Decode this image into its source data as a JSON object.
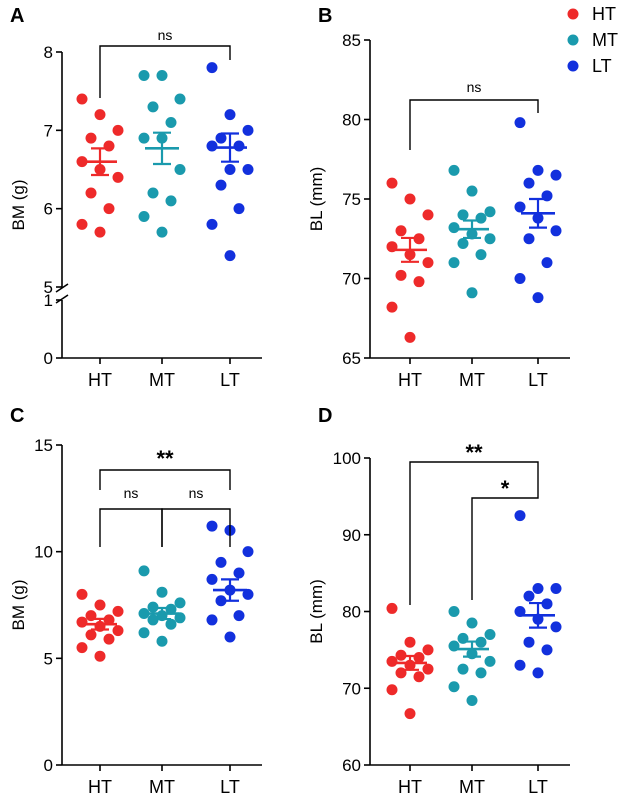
{
  "legend": [
    {
      "label": "HT",
      "color": "#ee2a2a"
    },
    {
      "label": "MT",
      "color": "#1a9aad"
    },
    {
      "label": "LT",
      "color": "#1230dd"
    }
  ],
  "chart_data": [
    {
      "panel": "A",
      "type": "scatter",
      "ylabel": "BM (g)",
      "categories": [
        "HT",
        "MT",
        "LT"
      ],
      "axis_break": {
        "low_range": [
          0,
          1
        ],
        "high_range": [
          5,
          8
        ]
      },
      "yticks": [
        "0",
        "1",
        "5",
        "6",
        "7",
        "8"
      ],
      "series": [
        {
          "name": "HT",
          "color": "#ee2a2a",
          "points": [
            7.4,
            7.2,
            7.0,
            6.9,
            6.8,
            6.6,
            6.5,
            6.4,
            6.2,
            6.0,
            5.8,
            5.7
          ],
          "mean": 6.6,
          "sem": 0.17
        },
        {
          "name": "MT",
          "color": "#1a9aad",
          "points": [
            7.7,
            7.7,
            7.4,
            7.3,
            7.1,
            6.9,
            6.9,
            6.5,
            6.2,
            6.1,
            5.9,
            5.7
          ],
          "mean": 6.77,
          "sem": 0.2
        },
        {
          "name": "LT",
          "color": "#1230dd",
          "points": [
            7.8,
            7.2,
            7.0,
            6.9,
            6.8,
            6.8,
            6.5,
            6.5,
            6.3,
            6.0,
            5.8,
            5.4
          ],
          "mean": 6.78,
          "sem": 0.18
        }
      ],
      "comparisons": [
        {
          "from": "HT",
          "to": "LT",
          "label": "ns"
        }
      ]
    },
    {
      "panel": "B",
      "type": "scatter",
      "ylabel": "BL (mm)",
      "categories": [
        "HT",
        "MT",
        "LT"
      ],
      "ylim": [
        65,
        85
      ],
      "yticks": [
        "65",
        "70",
        "75",
        "80",
        "85"
      ],
      "series": [
        {
          "name": "HT",
          "color": "#ee2a2a",
          "points": [
            76.0,
            75.0,
            74.0,
            73.0,
            72.5,
            72.0,
            71.5,
            71.0,
            70.2,
            69.8,
            68.2,
            66.3
          ],
          "mean": 71.8,
          "sem": 0.75
        },
        {
          "name": "MT",
          "color": "#1a9aad",
          "points": [
            76.8,
            75.5,
            74.2,
            74.0,
            73.8,
            73.2,
            72.8,
            72.5,
            72.2,
            71.5,
            71.0,
            69.1
          ],
          "mean": 73.1,
          "sem": 0.55
        },
        {
          "name": "LT",
          "color": "#1230dd",
          "points": [
            79.8,
            76.8,
            76.5,
            76.0,
            75.2,
            74.5,
            73.8,
            73.0,
            72.5,
            71.0,
            70.0,
            68.8
          ],
          "mean": 74.1,
          "sem": 0.9
        }
      ],
      "comparisons": [
        {
          "from": "HT",
          "to": "LT",
          "label": "ns"
        }
      ]
    },
    {
      "panel": "C",
      "type": "scatter",
      "ylabel": "BM (g)",
      "categories": [
        "HT",
        "MT",
        "LT"
      ],
      "ylim": [
        0,
        15
      ],
      "yticks": [
        "0",
        "5",
        "10",
        "15"
      ],
      "series": [
        {
          "name": "HT",
          "color": "#ee2a2a",
          "points": [
            8.0,
            7.5,
            7.2,
            7.0,
            6.8,
            6.7,
            6.5,
            6.3,
            6.1,
            5.9,
            5.5,
            5.1
          ],
          "mean": 6.6,
          "sem": 0.25
        },
        {
          "name": "MT",
          "color": "#1a9aad",
          "points": [
            9.1,
            8.1,
            7.6,
            7.4,
            7.3,
            7.1,
            7.0,
            6.9,
            6.8,
            6.6,
            6.2,
            5.8
          ],
          "mean": 7.1,
          "sem": 0.26
        },
        {
          "name": "LT",
          "color": "#1230dd",
          "points": [
            11.2,
            11.0,
            10.0,
            9.5,
            9.0,
            8.7,
            8.2,
            8.0,
            7.7,
            7.0,
            6.8,
            6.0
          ],
          "mean": 8.2,
          "sem": 0.5
        }
      ],
      "comparisons": [
        {
          "from": "HT",
          "to": "LT",
          "label": "**"
        },
        {
          "from": "HT",
          "to": "MT",
          "label": "ns"
        },
        {
          "from": "MT",
          "to": "LT",
          "label": "ns"
        }
      ]
    },
    {
      "panel": "D",
      "type": "scatter",
      "ylabel": "BL (mm)",
      "categories": [
        "HT",
        "MT",
        "LT"
      ],
      "ylim": [
        60,
        100
      ],
      "yticks": [
        "60",
        "70",
        "80",
        "90",
        "100"
      ],
      "series": [
        {
          "name": "HT",
          "color": "#ee2a2a",
          "points": [
            80.4,
            76.0,
            75.0,
            74.3,
            74.0,
            73.5,
            73.0,
            72.5,
            72.0,
            71.5,
            69.8,
            66.7
          ],
          "mean": 73.3,
          "sem": 0.9
        },
        {
          "name": "MT",
          "color": "#1a9aad",
          "points": [
            80.0,
            78.5,
            77.0,
            76.5,
            76.0,
            75.5,
            74.5,
            73.5,
            72.5,
            72.0,
            70.2,
            68.4
          ],
          "mean": 75.1,
          "sem": 0.98
        },
        {
          "name": "LT",
          "color": "#1230dd",
          "points": [
            92.5,
            83.0,
            83.0,
            82.0,
            81.0,
            80.0,
            79.0,
            78.0,
            76.0,
            75.0,
            73.0,
            72.0
          ],
          "mean": 79.5,
          "sem": 1.6
        }
      ],
      "comparisons": [
        {
          "from": "HT",
          "to": "LT",
          "label": "**"
        },
        {
          "from": "MT",
          "to": "LT",
          "label": "*"
        }
      ]
    }
  ]
}
